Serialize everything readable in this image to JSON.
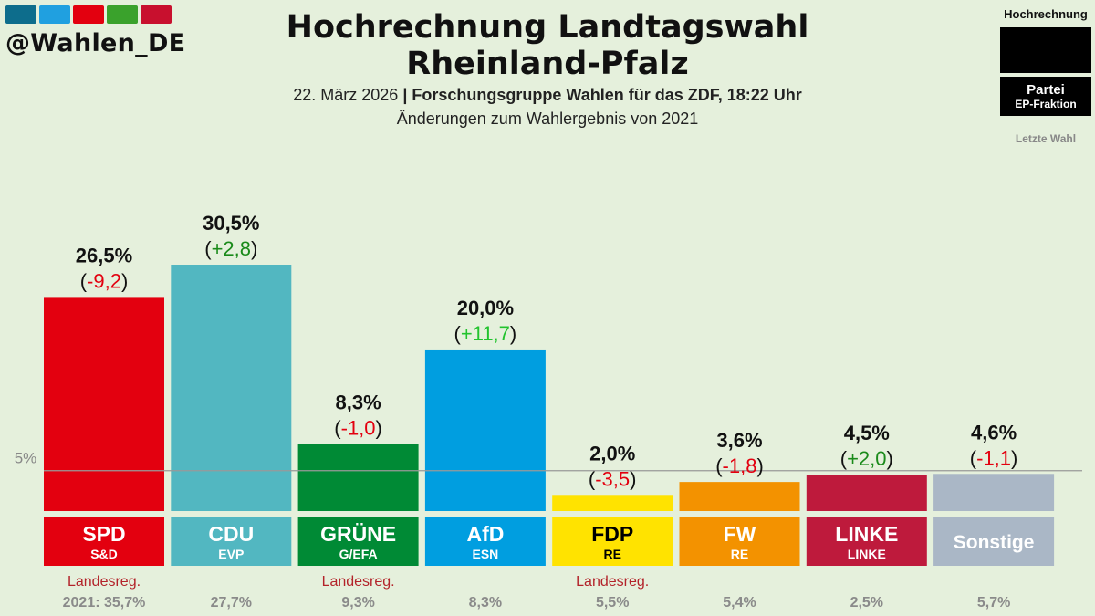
{
  "header": {
    "handle": "@Wahlen_DE",
    "title_line1": "Hochrechnung Landtagswahl",
    "title_line2": "Rheinland-Pfalz",
    "date": "22. März 2026",
    "separator": "|",
    "source": "Forschungsgruppe Wahlen für das ZDF, 18:22 Uhr",
    "subtitle2": "Änderungen zum Wahlergebnis von 2021",
    "logo_colors": [
      "#0d6d8c",
      "#20a0e0",
      "#e3000f",
      "#3aa22c",
      "#c8102e"
    ]
  },
  "legend": {
    "title": "Hochrechnung",
    "party": "Partei",
    "faction": "EP-Fraktion",
    "last": "Letzte Wahl"
  },
  "chart_data": {
    "type": "bar",
    "ylim": [
      0,
      30.5
    ],
    "threshold": {
      "value": 5,
      "label": "5%"
    },
    "categories": [
      "SPD",
      "CDU",
      "GRÜNE",
      "AfD",
      "FDP",
      "FW",
      "LINKE",
      "Sonstige"
    ],
    "factions": [
      "S&D",
      "EVP",
      "G/EFA",
      "ESN",
      "RE",
      "RE",
      "LINKE",
      ""
    ],
    "values": [
      26.5,
      30.5,
      8.3,
      20.0,
      2.0,
      3.6,
      4.5,
      4.6
    ],
    "value_labels": [
      "26,5%",
      "30,5%",
      "8,3%",
      "20,0%",
      "2,0%",
      "3,6%",
      "4,5%",
      "4,6%"
    ],
    "changes": [
      -9.2,
      2.8,
      -1.0,
      11.7,
      -3.5,
      -1.8,
      2.0,
      -1.1
    ],
    "change_labels": [
      "-9,2",
      "+2,8",
      "-1,0",
      "+11,7",
      "-3,5",
      "-1,8",
      "+2,0",
      "-1,1"
    ],
    "previous_labels": [
      "2021: 35,7%",
      "27,7%",
      "9,3%",
      "8,3%",
      "5,5%",
      "5,4%",
      "2,5%",
      "5,7%"
    ],
    "government_label": "Landesreg.",
    "government": [
      true,
      false,
      true,
      false,
      true,
      false,
      false,
      false
    ],
    "colors": [
      "#e3000f",
      "#52b7c1",
      "#008a35",
      "#009ee0",
      "#ffe300",
      "#f39200",
      "#be1a3c",
      "#aab7c6"
    ],
    "label_text_colors": [
      "#ffffff",
      "#ffffff",
      "#ffffff",
      "#ffffff",
      "#000000",
      "#ffffff",
      "#ffffff",
      "#ffffff"
    ],
    "change_colors": {
      "negative": "#e3000f",
      "positive_large": "#22c32e",
      "positive": "#1a8a1a"
    }
  }
}
